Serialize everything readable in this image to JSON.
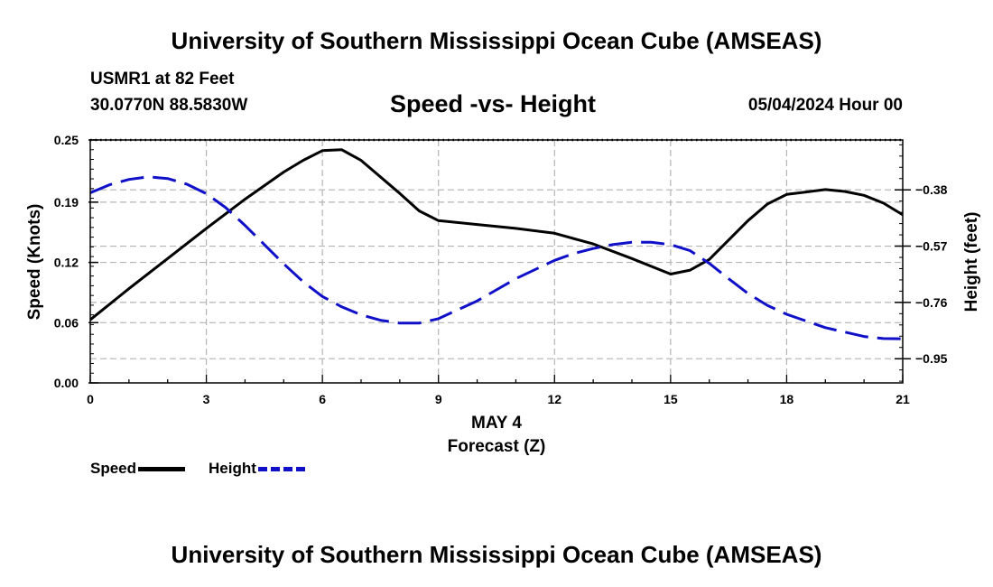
{
  "page": {
    "title": "University of Southern Mississippi Ocean Cube (AMSEAS)",
    "footer_title": "University of Southern Mississippi Ocean Cube (AMSEAS)",
    "station": "USMR1 at 82 Feet",
    "coordinates": "30.0770N  88.5830W",
    "subtitle": "Speed -vs- Height",
    "datetime": "05/04/2024 Hour 00"
  },
  "legend": {
    "speed_label": "Speed",
    "height_label": "Height"
  },
  "colors": {
    "speed": "#000000",
    "height": "#1010c8",
    "grid": "#b4b4b4"
  },
  "chart_data": {
    "type": "line",
    "title": "Speed -vs- Height",
    "xlabel": "MAY 4",
    "xlabel2": "Forecast (Z)",
    "ylabel": "Speed (Knots)",
    "ylabel_right": "Height (feet)",
    "xlim": [
      0,
      21
    ],
    "ylim": [
      0,
      0.25
    ],
    "ylim_right": [
      -1.0317,
      -0.2117
    ],
    "x_ticks": [
      0,
      3,
      6,
      9,
      12,
      15,
      18,
      21
    ],
    "x_tick_labels": [
      "0",
      "3",
      "6",
      "9",
      "12",
      "15",
      "18",
      "21"
    ],
    "y_ticks": [
      0,
      0.062,
      0.124,
      0.186,
      0.25
    ],
    "y_tick_labels": [
      "0.00",
      "0.06",
      "0.12",
      "0.19",
      "0.25"
    ],
    "y_right_ticks": [
      -0.95,
      -0.76,
      -0.57,
      -0.38
    ],
    "y_right_tick_labels": [
      "−0.95",
      "−0.76",
      "−0.57",
      "−0.38"
    ],
    "grid": true,
    "legend_position": "bottom-left",
    "series": [
      {
        "name": "Speed",
        "axis": "left",
        "style": "solid",
        "x": [
          0,
          1,
          2,
          3,
          4,
          5,
          5.5,
          6,
          6.5,
          7,
          8,
          8.5,
          9,
          10,
          11,
          12,
          13,
          14,
          15,
          15.5,
          16,
          17,
          17.5,
          18,
          19,
          19.5,
          20,
          20.5,
          21
        ],
        "values": [
          0.065,
          0.097,
          0.128,
          0.159,
          0.189,
          0.217,
          0.229,
          0.239,
          0.24,
          0.229,
          0.195,
          0.177,
          0.167,
          0.163,
          0.159,
          0.154,
          0.143,
          0.128,
          0.112,
          0.116,
          0.127,
          0.167,
          0.184,
          0.194,
          0.199,
          0.197,
          0.193,
          0.185,
          0.173
        ]
      },
      {
        "name": "Height",
        "axis": "right",
        "style": "dashed",
        "x": [
          0,
          0.5,
          1,
          1.5,
          2,
          2.5,
          3,
          3.5,
          4,
          4.5,
          5,
          5.5,
          6,
          6.5,
          7,
          7.5,
          8,
          8.5,
          9,
          10,
          11,
          12,
          12.5,
          13,
          13.5,
          14,
          14.5,
          15,
          15.5,
          16,
          16.5,
          17,
          17.5,
          18,
          19,
          20,
          20.5,
          21
        ],
        "values": [
          -0.39,
          -0.363,
          -0.345,
          -0.336,
          -0.342,
          -0.361,
          -0.393,
          -0.44,
          -0.5,
          -0.565,
          -0.63,
          -0.69,
          -0.74,
          -0.775,
          -0.802,
          -0.82,
          -0.83,
          -0.83,
          -0.815,
          -0.755,
          -0.68,
          -0.618,
          -0.595,
          -0.578,
          -0.565,
          -0.557,
          -0.557,
          -0.565,
          -0.585,
          -0.628,
          -0.68,
          -0.73,
          -0.77,
          -0.8,
          -0.845,
          -0.875,
          -0.882,
          -0.883
        ]
      }
    ]
  }
}
